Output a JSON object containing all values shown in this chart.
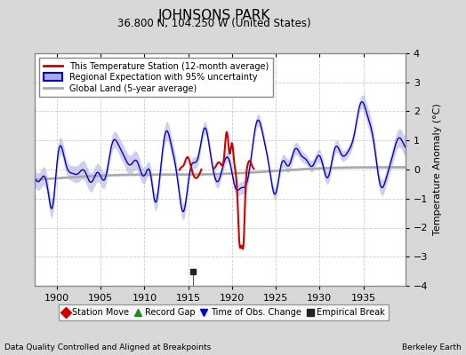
{
  "title": "JOHNSONS PARK",
  "subtitle": "36.800 N, 104.250 W (United States)",
  "ylabel": "Temperature Anomaly (°C)",
  "xlabel_left": "Data Quality Controlled and Aligned at Breakpoints",
  "xlabel_right": "Berkeley Earth",
  "ylim": [
    -4,
    4
  ],
  "xlim_start": 1897.5,
  "xlim_end": 1939.8,
  "xticks": [
    1900,
    1905,
    1910,
    1915,
    1920,
    1925,
    1930,
    1935
  ],
  "yticks": [
    -4,
    -3,
    -2,
    -1,
    0,
    1,
    2,
    3,
    4
  ],
  "fig_bg_color": "#d8d8d8",
  "plot_bg_color": "#ffffff",
  "grid_color": "#cccccc",
  "regional_color": "#0000cc",
  "regional_band_color": "#aaaadd",
  "station_color": "#cc0000",
  "global_color": "#aaaaaa",
  "empirical_break_x": 1915.5,
  "legend_items": [
    "This Temperature Station (12-month average)",
    "Regional Expectation with 95% uncertainty",
    "Global Land (5-year average)"
  ],
  "marker_legend": [
    {
      "label": "Station Move",
      "color": "#cc0000",
      "marker": "D"
    },
    {
      "label": "Record Gap",
      "color": "#228822",
      "marker": "^"
    },
    {
      "label": "Time of Obs. Change",
      "color": "#0000cc",
      "marker": "v"
    },
    {
      "label": "Empirical Break",
      "color": "#222222",
      "marker": "s"
    }
  ]
}
